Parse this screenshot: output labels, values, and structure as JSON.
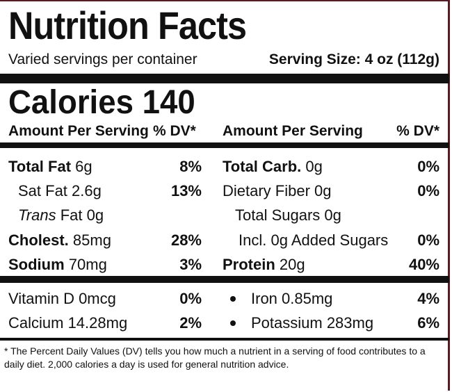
{
  "header": {
    "title": "Nutrition Facts",
    "servings_per_container": "Varied servings per container",
    "serving_size": "Serving Size: 4 oz (112g)"
  },
  "calories": {
    "label": "Calories",
    "value": "140"
  },
  "column_headers": {
    "left_amount": "Amount Per Serving",
    "left_dv": "% DV*",
    "right_amount": "Amount Per Serving",
    "right_dv": "% DV*"
  },
  "left_nutrients": [
    {
      "name": "Total Fat",
      "amount": "6g",
      "dv": "8%"
    },
    {
      "name": "Sat Fat",
      "amount": "2.6g",
      "dv": "13%"
    },
    {
      "name": "Trans",
      "suffix": "Fat 0g",
      "dv": ""
    },
    {
      "name": "Cholest.",
      "amount": "85mg",
      "dv": "28%"
    },
    {
      "name": "Sodium",
      "amount": "70mg",
      "dv": "3%"
    }
  ],
  "right_nutrients": [
    {
      "name": "Total Carb.",
      "amount": "0g",
      "dv": "0%"
    },
    {
      "name": "Dietary Fiber",
      "amount": "0g",
      "dv": "0%"
    },
    {
      "name": "Total Sugars",
      "amount": "0g",
      "dv": ""
    },
    {
      "name": "Incl. 0g Added Sugars",
      "amount": "",
      "dv": "0%"
    },
    {
      "name": "Protein",
      "amount": "20g",
      "dv": "40%"
    }
  ],
  "vitamins": [
    {
      "text": "Vitamin D 0mcg",
      "dv": "0%"
    },
    {
      "text": "Calcium 14.28mg",
      "dv": "2%"
    },
    {
      "text": "Iron 0.85mg",
      "dv": "4%"
    },
    {
      "text": "Potassium 283mg",
      "dv": "6%"
    }
  ],
  "footnote": "* The Percent Daily Values (DV) tells you how much a nutrient in a serving of food  contributes to a daily diet. 2,000 calories a day is used for general nutrition advice."
}
